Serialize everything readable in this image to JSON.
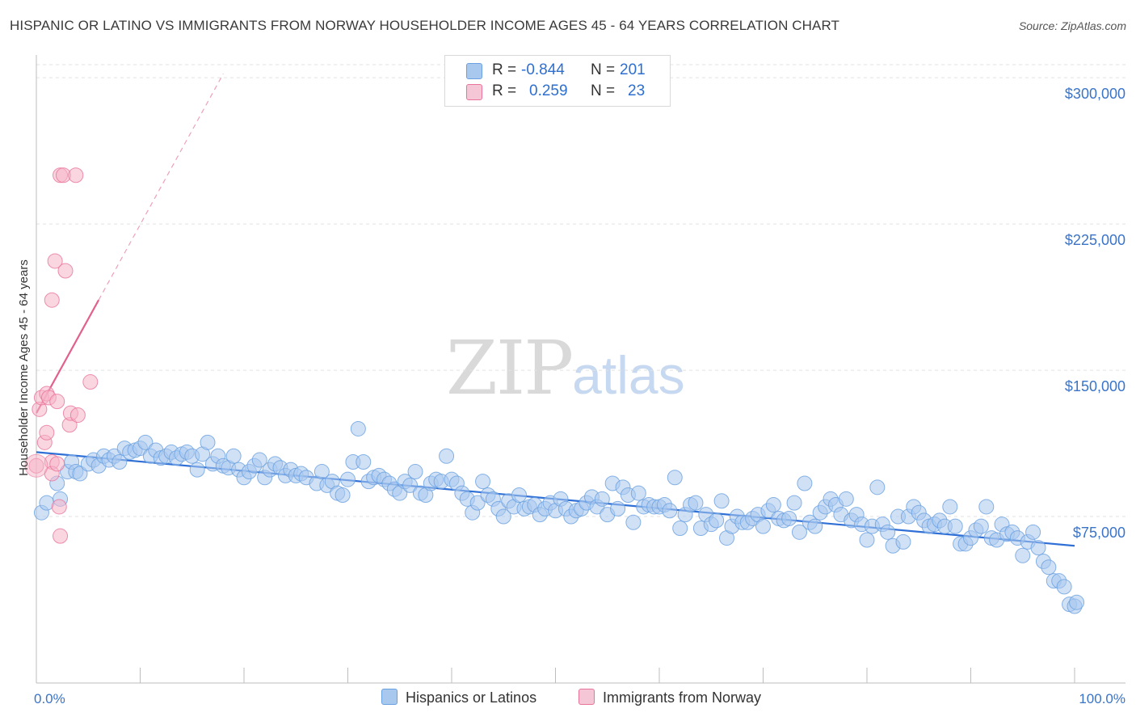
{
  "title": "HISPANIC OR LATINO VS IMMIGRANTS FROM NORWAY HOUSEHOLDER INCOME AGES 45 - 64 YEARS CORRELATION CHART",
  "source": "Source: ZipAtlas.com",
  "watermark": {
    "zip": "ZIP",
    "atlas": "atlas"
  },
  "legend": {
    "rows": [
      {
        "r_label": "R =",
        "r_value": "-0.844",
        "n_label": "N =",
        "n_value": "201",
        "color": "#a9c8ee"
      },
      {
        "r_label": "R =",
        "r_value": "0.259",
        "n_label": "N =",
        "n_value": "23",
        "color": "#f5b4c8"
      }
    ]
  },
  "bottom_legend": [
    {
      "label": "Hispanics or Latinos",
      "color": "#a9c8ee"
    },
    {
      "label": "Immigrants from Norway",
      "color": "#f5b4c8"
    }
  ],
  "chart_data": {
    "type": "scatter",
    "title": "HISPANIC OR LATINO VS IMMIGRANTS FROM NORWAY HOUSEHOLDER INCOME AGES 45 - 64 YEARS CORRELATION CHART",
    "xlabel": "",
    "ylabel": "Householder Income Ages 45 - 64 years",
    "xlim": [
      0,
      100
    ],
    "ylim": [
      0,
      310000
    ],
    "x_tick_labels": [
      "0.0%",
      "100.0%"
    ],
    "y_ticks": [
      75000,
      150000,
      225000,
      300000
    ],
    "y_tick_labels": [
      "$75,000",
      "$150,000",
      "$225,000",
      "$300,000"
    ],
    "grid": true,
    "series": [
      {
        "name": "Hispanics or Latinos",
        "color": "#6aa0e0",
        "fill": "#a9c8ee",
        "trend": {
          "x": [
            0,
            100
          ],
          "y": [
            108000,
            60000
          ]
        },
        "points": [
          [
            0.5,
            77000
          ],
          [
            1,
            82000
          ],
          [
            2,
            92000
          ],
          [
            2.3,
            84000
          ],
          [
            3,
            98000
          ],
          [
            3.4,
            103000
          ],
          [
            3.8,
            98000
          ],
          [
            4.2,
            97000
          ],
          [
            5,
            102000
          ],
          [
            5.5,
            104000
          ],
          [
            6,
            101000
          ],
          [
            6.5,
            106000
          ],
          [
            7,
            104000
          ],
          [
            7.5,
            106000
          ],
          [
            8,
            103000
          ],
          [
            8.5,
            110000
          ],
          [
            9,
            108000
          ],
          [
            9.5,
            109000
          ],
          [
            10,
            110000
          ],
          [
            10.5,
            113000
          ],
          [
            11,
            106000
          ],
          [
            11.5,
            109000
          ],
          [
            12,
            105000
          ],
          [
            12.5,
            106000
          ],
          [
            13,
            108000
          ],
          [
            13.5,
            105000
          ],
          [
            14,
            107000
          ],
          [
            14.5,
            108000
          ],
          [
            15,
            106000
          ],
          [
            15.5,
            99000
          ],
          [
            16,
            107000
          ],
          [
            16.5,
            113000
          ],
          [
            17,
            102000
          ],
          [
            17.5,
            106000
          ],
          [
            18,
            101000
          ],
          [
            18.5,
            100000
          ],
          [
            19,
            106000
          ],
          [
            19.5,
            99000
          ],
          [
            20,
            95000
          ],
          [
            20.5,
            98000
          ],
          [
            21,
            101000
          ],
          [
            21.5,
            104000
          ],
          [
            22,
            95000
          ],
          [
            22.5,
            99000
          ],
          [
            23,
            102000
          ],
          [
            23.5,
            100000
          ],
          [
            24,
            96000
          ],
          [
            24.5,
            99000
          ],
          [
            25,
            96000
          ],
          [
            25.5,
            97000
          ],
          [
            26,
            95000
          ],
          [
            27,
            92000
          ],
          [
            27.5,
            98000
          ],
          [
            28,
            91000
          ],
          [
            28.5,
            93000
          ],
          [
            29,
            87000
          ],
          [
            29.5,
            86000
          ],
          [
            30,
            94000
          ],
          [
            30.5,
            103000
          ],
          [
            31,
            120000
          ],
          [
            31.5,
            103000
          ],
          [
            32,
            93000
          ],
          [
            32.5,
            95000
          ],
          [
            33,
            96000
          ],
          [
            33.5,
            94000
          ],
          [
            34,
            92000
          ],
          [
            34.5,
            89000
          ],
          [
            35,
            87000
          ],
          [
            35.5,
            93000
          ],
          [
            36,
            91000
          ],
          [
            36.5,
            98000
          ],
          [
            37,
            87000
          ],
          [
            37.5,
            86000
          ],
          [
            38,
            92000
          ],
          [
            38.5,
            94000
          ],
          [
            39,
            93000
          ],
          [
            39.5,
            106000
          ],
          [
            40,
            94000
          ],
          [
            40.5,
            92000
          ],
          [
            41,
            87000
          ],
          [
            41.5,
            84000
          ],
          [
            42,
            77000
          ],
          [
            42.5,
            82000
          ],
          [
            43,
            93000
          ],
          [
            43.5,
            86000
          ],
          [
            44,
            84000
          ],
          [
            44.5,
            79000
          ],
          [
            45,
            75000
          ],
          [
            45.5,
            83000
          ],
          [
            46,
            80000
          ],
          [
            46.5,
            86000
          ],
          [
            47,
            79000
          ],
          [
            47.5,
            80000
          ],
          [
            48,
            81000
          ],
          [
            48.5,
            76000
          ],
          [
            49,
            79000
          ],
          [
            49.5,
            82000
          ],
          [
            50,
            78000
          ],
          [
            50.5,
            84000
          ],
          [
            51,
            79000
          ],
          [
            51.5,
            75000
          ],
          [
            52,
            78000
          ],
          [
            52.5,
            79000
          ],
          [
            53,
            82000
          ],
          [
            53.5,
            85000
          ],
          [
            54,
            80000
          ],
          [
            54.5,
            84000
          ],
          [
            55,
            76000
          ],
          [
            55.5,
            92000
          ],
          [
            56,
            79000
          ],
          [
            56.5,
            90000
          ],
          [
            57,
            86000
          ],
          [
            57.5,
            72000
          ],
          [
            58,
            87000
          ],
          [
            58.5,
            80000
          ],
          [
            59,
            81000
          ],
          [
            59.5,
            80000
          ],
          [
            60,
            80000
          ],
          [
            60.5,
            81000
          ],
          [
            61,
            78000
          ],
          [
            61.5,
            95000
          ],
          [
            62,
            69000
          ],
          [
            62.5,
            76000
          ],
          [
            63,
            81000
          ],
          [
            63.5,
            82000
          ],
          [
            64,
            69000
          ],
          [
            64.5,
            76000
          ],
          [
            65,
            71000
          ],
          [
            65.5,
            73000
          ],
          [
            66,
            83000
          ],
          [
            66.5,
            64000
          ],
          [
            67,
            70000
          ],
          [
            67.5,
            75000
          ],
          [
            68,
            72000
          ],
          [
            68.5,
            72000
          ],
          [
            69,
            74000
          ],
          [
            69.5,
            76000
          ],
          [
            70,
            70000
          ],
          [
            70.5,
            78000
          ],
          [
            71,
            81000
          ],
          [
            71.5,
            74000
          ],
          [
            72,
            73000
          ],
          [
            72.5,
            74000
          ],
          [
            73,
            82000
          ],
          [
            73.5,
            67000
          ],
          [
            74,
            92000
          ],
          [
            74.5,
            72000
          ],
          [
            75,
            70000
          ],
          [
            75.5,
            77000
          ],
          [
            76,
            80000
          ],
          [
            76.5,
            84000
          ],
          [
            77,
            81000
          ],
          [
            77.5,
            76000
          ],
          [
            78,
            84000
          ],
          [
            78.5,
            73000
          ],
          [
            79,
            76000
          ],
          [
            79.5,
            71000
          ],
          [
            80,
            63000
          ],
          [
            80.5,
            70000
          ],
          [
            81,
            90000
          ],
          [
            81.5,
            71000
          ],
          [
            82,
            67000
          ],
          [
            82.5,
            60000
          ],
          [
            83,
            75000
          ],
          [
            83.5,
            62000
          ],
          [
            84,
            75000
          ],
          [
            84.5,
            80000
          ],
          [
            85,
            77000
          ],
          [
            85.5,
            73000
          ],
          [
            86,
            70000
          ],
          [
            86.5,
            71000
          ],
          [
            87,
            73000
          ],
          [
            87.5,
            70000
          ],
          [
            88,
            80000
          ],
          [
            88.5,
            70000
          ],
          [
            89,
            61000
          ],
          [
            89.5,
            61000
          ],
          [
            90,
            64000
          ],
          [
            90.5,
            68000
          ],
          [
            91,
            70000
          ],
          [
            91.5,
            80000
          ],
          [
            92,
            64000
          ],
          [
            92.5,
            63000
          ],
          [
            93,
            71000
          ],
          [
            93.5,
            66000
          ],
          [
            94,
            67000
          ],
          [
            94.5,
            64000
          ],
          [
            95,
            55000
          ],
          [
            95.5,
            62000
          ],
          [
            96,
            67000
          ],
          [
            96.5,
            59000
          ],
          [
            97,
            52000
          ],
          [
            97.5,
            49000
          ],
          [
            98,
            42000
          ],
          [
            98.5,
            42000
          ],
          [
            99,
            39000
          ],
          [
            99.5,
            30000
          ],
          [
            100,
            29000
          ],
          [
            100.2,
            31000
          ]
        ]
      },
      {
        "name": "Immigrants from Norway",
        "color": "#e8749a",
        "fill": "#f5b4c8",
        "trend": {
          "x": [
            0,
            6
          ],
          "y": [
            128000,
            186000
          ]
        },
        "trend_extension": {
          "x": [
            6,
            18
          ],
          "y": [
            186000,
            302000
          ]
        },
        "points": [
          [
            0,
            101000
          ],
          [
            0.3,
            130000
          ],
          [
            0.5,
            136000
          ],
          [
            0.8,
            113000
          ],
          [
            1,
            118000
          ],
          [
            1,
            138000
          ],
          [
            1.2,
            136000
          ],
          [
            1.5,
            103000
          ],
          [
            1.5,
            186000
          ],
          [
            1.5,
            97000
          ],
          [
            1.8,
            206000
          ],
          [
            2,
            102000
          ],
          [
            2,
            134000
          ],
          [
            2.2,
            80000
          ],
          [
            2.3,
            65000
          ],
          [
            2.3,
            250000
          ],
          [
            2.6,
            250000
          ],
          [
            2.8,
            201000
          ],
          [
            3.2,
            122000
          ],
          [
            3.3,
            128000
          ],
          [
            3.8,
            250000
          ],
          [
            4,
            127000
          ],
          [
            5.2,
            144000
          ]
        ]
      }
    ]
  }
}
